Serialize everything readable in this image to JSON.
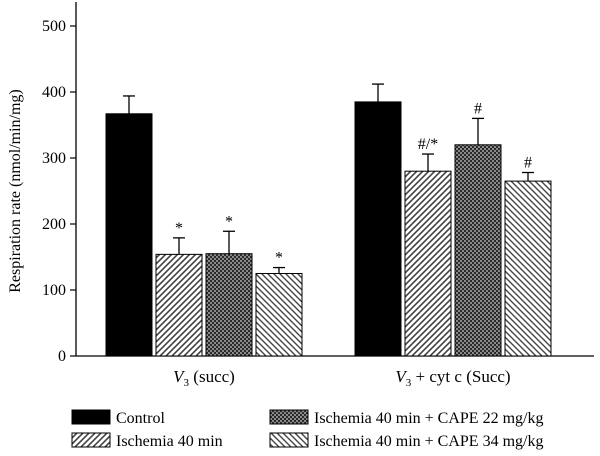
{
  "chart_data": {
    "type": "bar",
    "ylabel": "Respiration rate (nmol/min/mg)",
    "ylim": [
      0,
      500
    ],
    "yticks": [
      0,
      100,
      200,
      300,
      400,
      500
    ],
    "groups": [
      {
        "prefix": "V",
        "sub": "3",
        "suffix": " (succ)"
      },
      {
        "prefix": "V",
        "sub": "3",
        "suffix": " + cyt c (Succ)"
      }
    ],
    "series": [
      {
        "name": "Control",
        "fill": "solid",
        "values": [
          367,
          385
        ],
        "errors": [
          27,
          27
        ],
        "annotations": [
          "",
          ""
        ]
      },
      {
        "name": "Ischemia 40 min",
        "fill": "diag-right",
        "values": [
          154,
          280
        ],
        "errors": [
          25,
          26
        ],
        "annotations": [
          "*",
          "#/*"
        ]
      },
      {
        "name": "Ischemia 40 min + CAPE 22 mg/kg",
        "fill": "crosshatch",
        "values": [
          155,
          320
        ],
        "errors": [
          34,
          40
        ],
        "annotations": [
          "*",
          "#"
        ]
      },
      {
        "name": "Ischemia 40 min + CAPE 34 mg/kg",
        "fill": "diag-left",
        "values": [
          125,
          265
        ],
        "errors": [
          9,
          13
        ],
        "annotations": [
          "*",
          "#"
        ]
      }
    ],
    "legend_position": "bottom",
    "grid": false
  }
}
